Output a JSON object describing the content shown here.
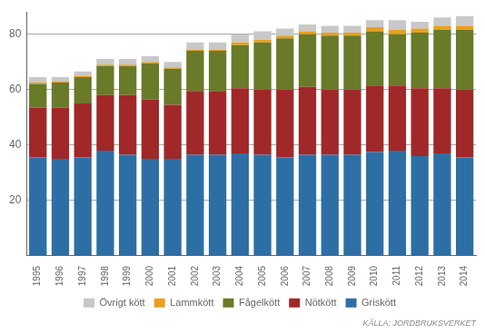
{
  "chart_data": {
    "type": "bar",
    "stacked": true,
    "categories": [
      "1995",
      "1996",
      "1997",
      "1998",
      "1999",
      "2000",
      "2001",
      "2002",
      "2003",
      "2004",
      "2005",
      "2006",
      "2007",
      "2008",
      "2009",
      "2010",
      "2011",
      "2012",
      "2013",
      "2014"
    ],
    "series": [
      {
        "name": "Griskött",
        "color": "#2d6fa5",
        "values": [
          35.5,
          35.0,
          35.5,
          38.0,
          36.5,
          35.0,
          35.0,
          36.5,
          36.5,
          37.0,
          36.5,
          35.5,
          36.5,
          36.5,
          36.5,
          37.5,
          38.0,
          36.0,
          37.0,
          35.5
        ]
      },
      {
        "name": "Nötkött",
        "color": "#a02828",
        "values": [
          18.0,
          18.5,
          19.5,
          20.0,
          21.5,
          21.5,
          19.5,
          23.0,
          23.0,
          23.5,
          23.5,
          24.5,
          24.5,
          23.5,
          23.5,
          24.0,
          23.5,
          24.5,
          23.5,
          24.5
        ]
      },
      {
        "name": "Fågelkött",
        "color": "#697a28",
        "values": [
          8.5,
          9.0,
          9.5,
          10.5,
          10.5,
          13.0,
          13.0,
          14.5,
          14.5,
          15.5,
          17.0,
          18.5,
          19.0,
          19.5,
          19.5,
          19.5,
          18.5,
          20.0,
          21.0,
          21.5
        ]
      },
      {
        "name": "Lammkött",
        "color": "#e8a020",
        "values": [
          0.5,
          0.5,
          0.5,
          0.5,
          0.5,
          0.5,
          0.5,
          0.5,
          0.5,
          1.0,
          1.0,
          1.0,
          1.0,
          1.0,
          1.0,
          1.5,
          1.5,
          1.5,
          1.5,
          1.5
        ]
      },
      {
        "name": "Övrigt kött",
        "color": "#c8c8c8",
        "values": [
          2.0,
          1.5,
          1.5,
          2.0,
          2.0,
          2.0,
          2.0,
          2.5,
          2.5,
          3.0,
          3.0,
          2.5,
          2.5,
          2.5,
          2.5,
          2.5,
          3.5,
          2.5,
          3.0,
          3.5
        ]
      }
    ],
    "ylim": [
      0,
      88
    ],
    "yticks": [
      20,
      40,
      60,
      80
    ],
    "grid": true,
    "legend": "bottom",
    "annotation": "KÄLLA: JORDBRUKSVERKET"
  }
}
